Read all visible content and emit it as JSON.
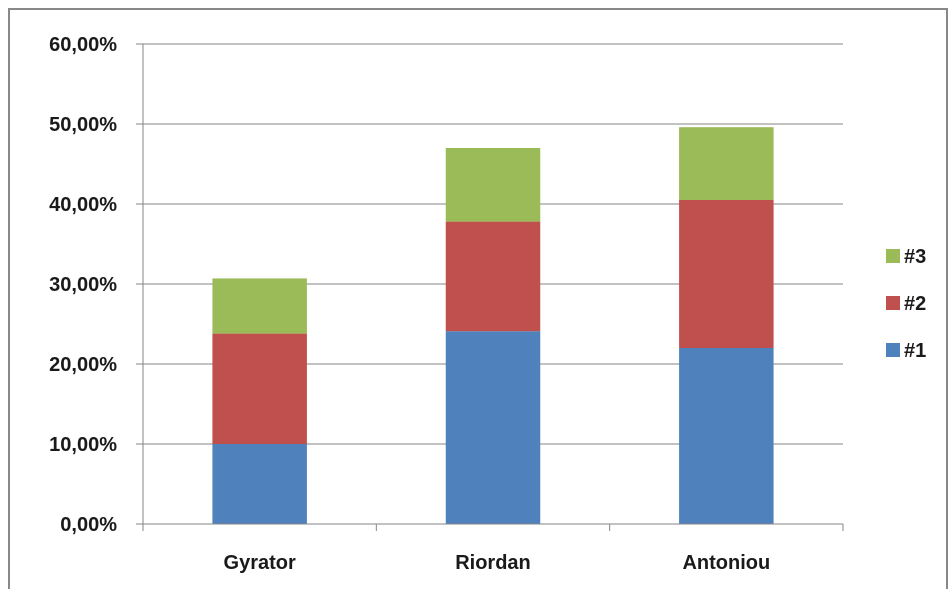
{
  "chart_data": {
    "type": "bar",
    "stacked": true,
    "categories": [
      "Gyrator",
      "Riordan",
      "Antoniou"
    ],
    "series": [
      {
        "name": "#1",
        "color": "#4f81bd",
        "values": [
          10.0,
          24.1,
          22.0
        ]
      },
      {
        "name": "#2",
        "color": "#c0504d",
        "values": [
          13.8,
          13.7,
          18.5
        ]
      },
      {
        "name": "#3",
        "color": "#9bbb59",
        "values": [
          6.9,
          9.2,
          9.1
        ]
      }
    ],
    "ylim": [
      0,
      60
    ],
    "yticks": [
      "0,00%",
      "10,00%",
      "20,00%",
      "30,00%",
      "40,00%",
      "50,00%",
      "60,00%"
    ],
    "grid": true,
    "gridline_color": "#868686",
    "legend_placement": "right",
    "legend_order": [
      "#3",
      "#2",
      "#1"
    ]
  }
}
